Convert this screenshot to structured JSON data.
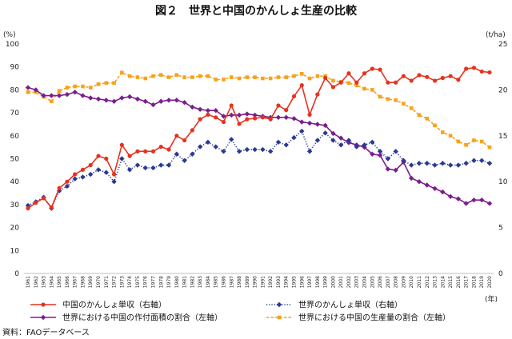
{
  "source": "資料：FAOデータベース",
  "chart_data": {
    "type": "line",
    "title": "図２　世界と中国のかんしょ生産の比較",
    "y_left_label": "(%)",
    "y_right_label": "(t/ha)",
    "x_label": "(年)",
    "y_left_lim": [
      0,
      100
    ],
    "y_left_ticks": [
      0,
      10,
      20,
      30,
      40,
      50,
      60,
      70,
      80,
      90,
      100
    ],
    "y_right_lim": [
      0,
      25
    ],
    "y_right_ticks": [
      0,
      5,
      10,
      15,
      20,
      25
    ],
    "grid": false,
    "legend_position": "bottom",
    "x": [
      1961,
      1962,
      1963,
      1964,
      1965,
      1966,
      1967,
      1968,
      1969,
      1970,
      1971,
      1972,
      1973,
      1974,
      1975,
      1976,
      1977,
      1978,
      1979,
      1980,
      1981,
      1982,
      1983,
      1984,
      1985,
      1986,
      1987,
      1988,
      1989,
      1990,
      1991,
      1992,
      1993,
      1994,
      1995,
      1996,
      1997,
      1998,
      1999,
      2000,
      2001,
      2002,
      2003,
      2004,
      2005,
      2006,
      2007,
      2008,
      2009,
      2010,
      2011,
      2012,
      2013,
      2014,
      2015,
      2016,
      2017,
      2018,
      2019,
      2020
    ],
    "series": [
      {
        "name": "中国のかんしょ単収（右軸）",
        "axis": "right",
        "color": "#e6321e",
        "line_style": "solid",
        "marker": "circle",
        "values": [
          7.1,
          7.7,
          8.2,
          7.2,
          9.3,
          10.0,
          10.8,
          11.3,
          11.8,
          12.8,
          12.5,
          10.8,
          14.0,
          12.8,
          13.3,
          13.3,
          13.3,
          13.8,
          13.5,
          15.0,
          14.5,
          15.6,
          16.8,
          17.3,
          17.0,
          16.5,
          18.3,
          16.3,
          16.8,
          16.9,
          17.0,
          16.8,
          18.3,
          17.8,
          19.3,
          20.5,
          17.3,
          19.5,
          21.3,
          20.3,
          20.8,
          21.8,
          20.8,
          21.8,
          22.3,
          22.2,
          20.8,
          20.8,
          21.5,
          21.0,
          21.6,
          21.4,
          21.0,
          21.3,
          21.5,
          21.1,
          22.3,
          22.4,
          22.0,
          21.9
        ]
      },
      {
        "name": "世界のかんしょ単収（右軸）",
        "axis": "right",
        "color": "#2b3990",
        "line_style": "dotted",
        "marker": "diamond",
        "values": [
          7.4,
          7.8,
          8.3,
          7.1,
          9.0,
          9.5,
          10.3,
          10.5,
          10.8,
          11.3,
          11.0,
          10.0,
          12.5,
          11.3,
          11.8,
          11.5,
          11.5,
          11.8,
          11.8,
          13.0,
          12.3,
          13.0,
          13.8,
          14.3,
          13.8,
          13.3,
          14.6,
          13.3,
          13.5,
          13.5,
          13.5,
          13.3,
          14.3,
          14.0,
          14.8,
          15.5,
          13.3,
          14.5,
          15.3,
          14.5,
          14.0,
          14.5,
          13.8,
          14.0,
          14.3,
          13.3,
          12.5,
          13.3,
          12.3,
          11.8,
          12.0,
          12.0,
          11.8,
          12.0,
          11.8,
          11.8,
          12.0,
          12.3,
          12.3,
          12.0
        ]
      },
      {
        "name": "世界における中国の作付面積の割合（左軸）",
        "axis": "left",
        "color": "#7b1e8c",
        "line_style": "solid",
        "marker": "diamond",
        "values": [
          81,
          80,
          77.5,
          77.5,
          77.5,
          78,
          79,
          77.5,
          76.5,
          76,
          75.5,
          75,
          76.5,
          77,
          76,
          75,
          73.5,
          75,
          75.5,
          75.5,
          74.5,
          72.5,
          71.5,
          71,
          71,
          68.5,
          69,
          69,
          69.5,
          69,
          68.5,
          68,
          68,
          68,
          67.5,
          66,
          65.5,
          65,
          64.5,
          61,
          59,
          57,
          56,
          55,
          52,
          51.5,
          45.5,
          45,
          48.5,
          41.5,
          40,
          38.5,
          37,
          35.5,
          33.5,
          32.5,
          30.5,
          32,
          32,
          30.5
        ]
      },
      {
        "name": "世界における中国の生産量の割合（左軸）",
        "axis": "left",
        "color": "#f7a21b",
        "line_style": "dashed",
        "marker": "square",
        "values": [
          79,
          79,
          77,
          75,
          79.5,
          81,
          81.5,
          81.5,
          81,
          82.5,
          83,
          83,
          87.5,
          86,
          85.5,
          85,
          86,
          86.5,
          85.5,
          86.5,
          85.5,
          85.5,
          86,
          86,
          84.5,
          84.5,
          85.5,
          85,
          85.5,
          85.5,
          85,
          85,
          85.5,
          85.5,
          86,
          87,
          85,
          86,
          86,
          84,
          83.5,
          83,
          82,
          80.5,
          80,
          77,
          76,
          75.5,
          74,
          72,
          69,
          67.5,
          64.5,
          61.5,
          60,
          57.5,
          56,
          58,
          57.5,
          55
        ]
      }
    ]
  }
}
